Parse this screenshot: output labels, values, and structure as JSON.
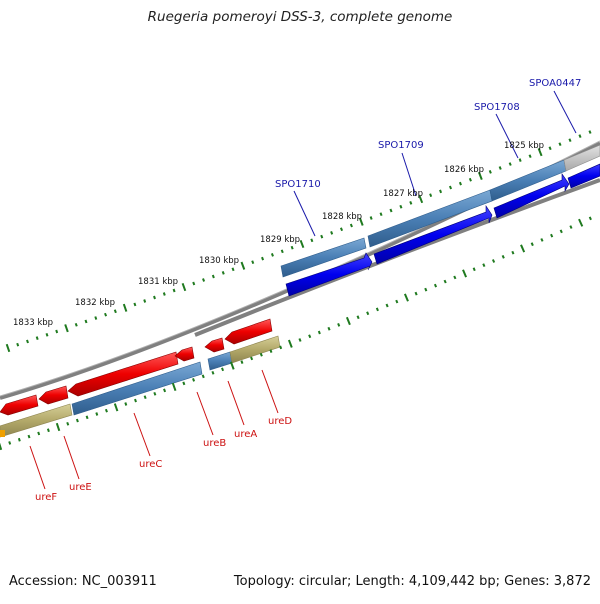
{
  "title": "Ruegeria pomeroyi DSS-3, complete genome",
  "footer": {
    "accession": "Accession: NC_003911",
    "summary": "Topology: circular; Length: 4,109,442 bp; Genes: 3,872"
  },
  "scale_labels": [
    "1833 kbp",
    "1832 kbp",
    "1831 kbp",
    "1830 kbp",
    "1829 kbp",
    "1828 kbp",
    "1827 kbp",
    "1826 kbp",
    "1825 kbp"
  ],
  "gene_labels_forward": [
    "SPO1710",
    "SPO1709",
    "SPO1708",
    "SPOA0447"
  ],
  "gene_labels_reverse": [
    "ureF",
    "ureE",
    "ureC",
    "ureB",
    "ureA",
    "ureD"
  ],
  "colors": {
    "backbone": "#808080",
    "forward_gene": "#0000ee",
    "reverse_gene": "#ee0000",
    "orf_blue": "#4a7fb5",
    "orf_olive": "#b3a96a",
    "orf_grey": "#bcbcbc",
    "tick": "#1f7a1f",
    "label_blue": "#1a1aaa",
    "label_red": "#cc1111"
  }
}
